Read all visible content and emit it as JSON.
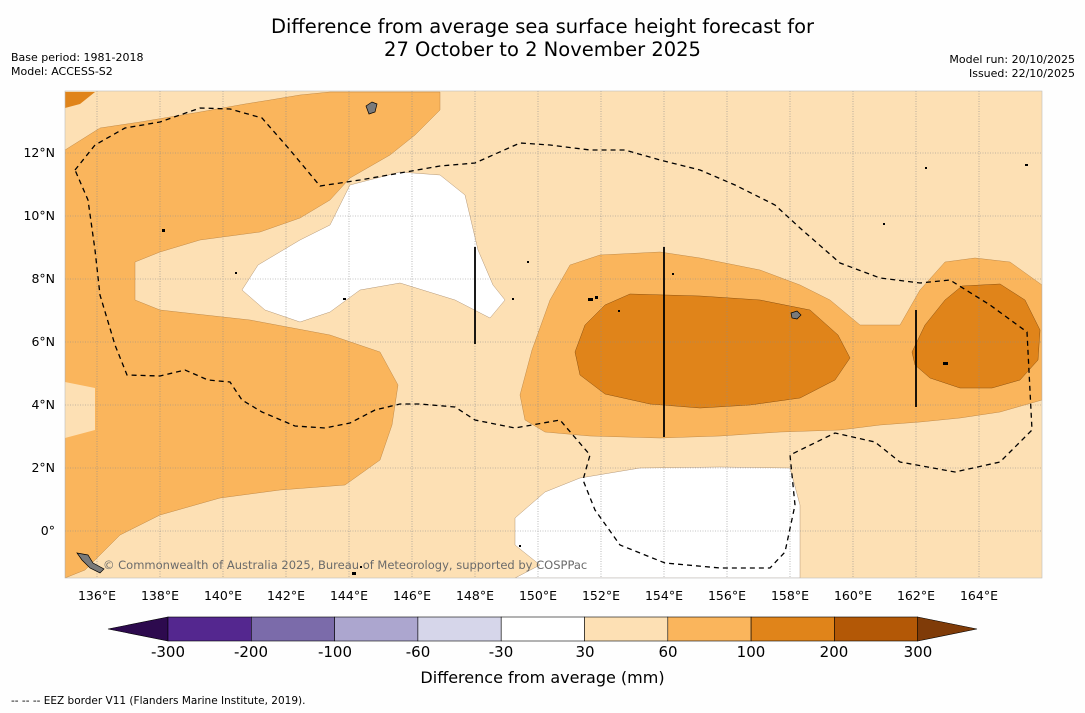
{
  "title_line1": "Difference from average sea surface height forecast for",
  "title_line2": "27 October to 2 November 2025",
  "base_period": "Base period: 1981-2018",
  "model": "Model: ACCESS-S2",
  "model_run": "Model run: 20/10/2025",
  "issued": "Issued: 22/10/2025",
  "credit": "© Commonwealth of Australia 2025, Bureau of Meteorology, supported by COSPPac",
  "footer": "-- -- -- EEZ border V11 (Flanders Marine Institute, 2019).",
  "lat_labels": [
    "12°N",
    "10°N",
    "8°N",
    "6°N",
    "4°N",
    "2°N",
    "0°"
  ],
  "lon_labels": [
    "136°E",
    "138°E",
    "140°E",
    "142°E",
    "144°E",
    "146°E",
    "148°E",
    "150°E",
    "152°E",
    "154°E",
    "156°E",
    "158°E",
    "160°E",
    "162°E",
    "164°E"
  ],
  "colorbar": {
    "title": "Difference from average (mm)",
    "labels": [
      "-300",
      "-200",
      "-100",
      "-60",
      "-30",
      "30",
      "60",
      "100",
      "200",
      "300"
    ],
    "colors": [
      "#2d0a4e",
      "#54278f",
      "#7b6baa",
      "#aca6cf",
      "#d6d6ea",
      "#ffffff",
      "#fde0b4",
      "#fab55c",
      "#e0841a",
      "#b35806",
      "#7f3b08"
    ]
  }
}
